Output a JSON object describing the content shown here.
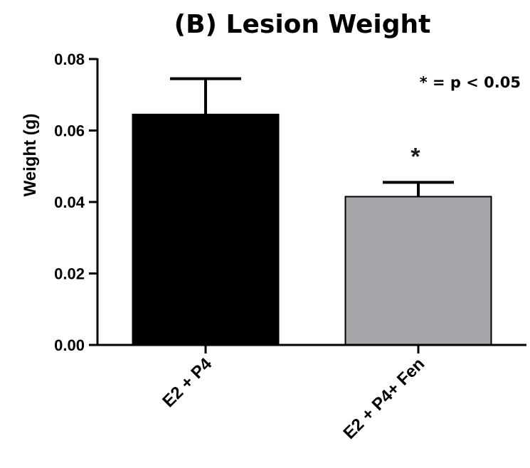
{
  "chart_data": {
    "type": "bar",
    "title": "(B) Lesion Weight",
    "ylabel": "Weight (g)",
    "xlabel": "",
    "ylim": [
      0,
      0.08
    ],
    "yticks": [
      "0.00",
      "0.02",
      "0.04",
      "0.06",
      "0.08"
    ],
    "categories": [
      "E2 + P4",
      "E2 + P4+ Fen"
    ],
    "values": [
      0.0645,
      0.0415
    ],
    "errors": [
      0.01,
      0.004
    ],
    "colors": [
      "#000000",
      "#a5a5aa"
    ],
    "significance": [
      "",
      "*"
    ],
    "annotation": "* = p < 0.05",
    "grid": false
  }
}
